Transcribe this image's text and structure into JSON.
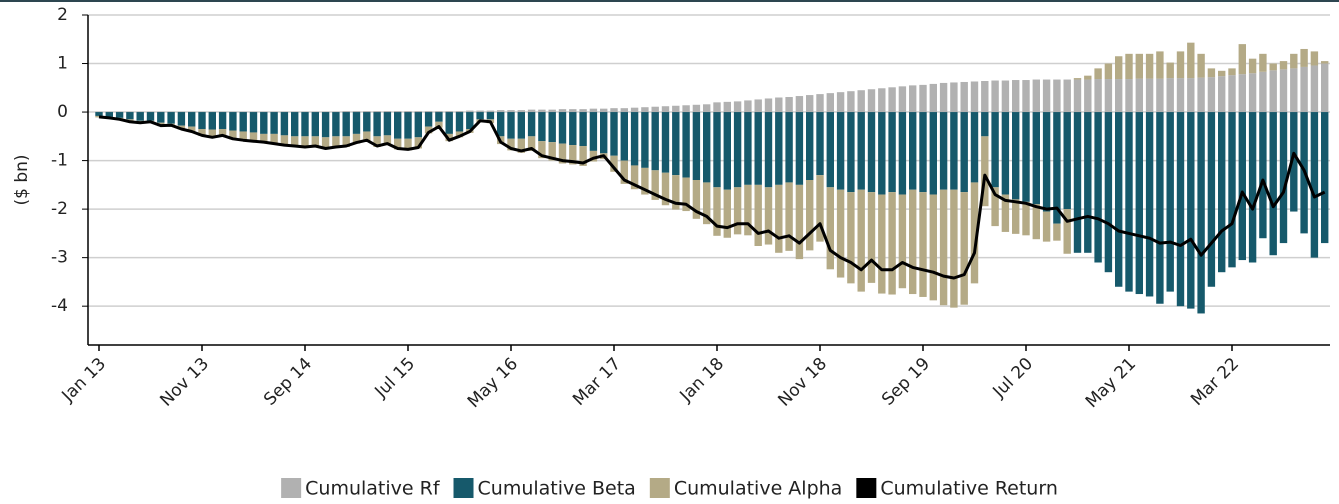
{
  "chart_data": {
    "type": "bar",
    "stacked": true,
    "y_label": "($ bn)",
    "categories": [
      "Jan 13",
      null,
      null,
      null,
      null,
      null,
      null,
      null,
      null,
      null,
      "Nov 13",
      null,
      null,
      null,
      null,
      null,
      null,
      null,
      null,
      null,
      "Sep 14",
      null,
      null,
      null,
      null,
      null,
      null,
      null,
      null,
      null,
      "Jul 15",
      null,
      null,
      null,
      null,
      null,
      null,
      null,
      null,
      null,
      "May 16",
      null,
      null,
      null,
      null,
      null,
      null,
      null,
      null,
      null,
      "Mar 17",
      null,
      null,
      null,
      null,
      null,
      null,
      null,
      null,
      null,
      "Jan 18",
      null,
      null,
      null,
      null,
      null,
      null,
      null,
      null,
      null,
      "Nov 18",
      null,
      null,
      null,
      null,
      null,
      null,
      null,
      null,
      null,
      "Sep 19",
      null,
      null,
      null,
      null,
      null,
      null,
      null,
      null,
      null,
      "Jul 20",
      null,
      null,
      null,
      null,
      null,
      null,
      null,
      null,
      null,
      "May 21",
      null,
      null,
      null,
      null,
      null,
      null,
      null,
      null,
      null,
      "Mar 22",
      null,
      null,
      null,
      null,
      null,
      null,
      null,
      null,
      null
    ],
    "series": [
      {
        "name": "Cumulative Rf",
        "color": "#b1b1b1",
        "values": [
          0.01,
          0.01,
          0.01,
          0.01,
          0.01,
          0.01,
          0.01,
          0.01,
          0.01,
          0.01,
          0.01,
          0.01,
          0.01,
          0.01,
          0.01,
          0.01,
          0.01,
          0.01,
          0.01,
          0.01,
          0.01,
          0.01,
          0.01,
          0.01,
          0.02,
          0.02,
          0.02,
          0.02,
          0.02,
          0.02,
          0.02,
          0.02,
          0.02,
          0.02,
          0.02,
          0.02,
          0.03,
          0.03,
          0.03,
          0.04,
          0.04,
          0.04,
          0.05,
          0.05,
          0.05,
          0.06,
          0.06,
          0.06,
          0.07,
          0.07,
          0.08,
          0.08,
          0.09,
          0.1,
          0.11,
          0.12,
          0.13,
          0.14,
          0.15,
          0.16,
          0.2,
          0.21,
          0.22,
          0.24,
          0.26,
          0.28,
          0.3,
          0.31,
          0.33,
          0.35,
          0.37,
          0.39,
          0.41,
          0.43,
          0.45,
          0.47,
          0.49,
          0.51,
          0.53,
          0.55,
          0.56,
          0.58,
          0.6,
          0.61,
          0.62,
          0.63,
          0.64,
          0.65,
          0.65,
          0.66,
          0.66,
          0.67,
          0.67,
          0.67,
          0.67,
          0.67,
          0.67,
          0.68,
          0.68,
          0.68,
          0.68,
          0.69,
          0.69,
          0.69,
          0.7,
          0.7,
          0.7,
          0.71,
          0.72,
          0.74,
          0.76,
          0.78,
          0.8,
          0.83,
          0.86,
          0.88,
          0.9,
          0.93,
          0.96,
          1.0
        ]
      },
      {
        "name": "Cumulative Beta",
        "color": "#16596b",
        "values": [
          -0.08,
          -0.1,
          -0.12,
          -0.15,
          -0.18,
          -0.18,
          -0.22,
          -0.24,
          -0.28,
          -0.3,
          -0.35,
          -0.36,
          -0.35,
          -0.38,
          -0.4,
          -0.42,
          -0.45,
          -0.45,
          -0.48,
          -0.5,
          -0.5,
          -0.5,
          -0.52,
          -0.5,
          -0.5,
          -0.45,
          -0.4,
          -0.5,
          -0.48,
          -0.55,
          -0.55,
          -0.52,
          -0.3,
          -0.2,
          -0.45,
          -0.4,
          -0.35,
          -0.15,
          -0.15,
          -0.5,
          -0.55,
          -0.55,
          -0.5,
          -0.6,
          -0.62,
          -0.65,
          -0.68,
          -0.7,
          -0.8,
          -0.85,
          -0.9,
          -1.0,
          -1.1,
          -1.15,
          -1.2,
          -1.25,
          -1.3,
          -1.35,
          -1.4,
          -1.45,
          -1.55,
          -1.6,
          -1.55,
          -1.5,
          -1.5,
          -1.55,
          -1.5,
          -1.45,
          -1.5,
          -1.4,
          -1.3,
          -1.55,
          -1.6,
          -1.65,
          -1.6,
          -1.65,
          -1.7,
          -1.65,
          -1.7,
          -1.6,
          -1.65,
          -1.7,
          -1.6,
          -1.6,
          -1.65,
          -1.45,
          -0.5,
          -1.55,
          -1.7,
          -1.8,
          -1.85,
          -1.9,
          -2.05,
          -2.3,
          -2.0,
          -2.9,
          -2.9,
          -3.1,
          -3.3,
          -3.6,
          -3.7,
          -3.75,
          -3.8,
          -3.95,
          -3.7,
          -4.0,
          -4.05,
          -4.15,
          -3.6,
          -3.3,
          -3.2,
          -3.05,
          -3.1,
          -2.6,
          -2.95,
          -2.7,
          -2.05,
          -2.5,
          -3.0,
          -2.7
        ]
      },
      {
        "name": "Cumulative Alpha",
        "color": "#b4aa86",
        "values": [
          -0.03,
          -0.03,
          -0.04,
          -0.06,
          -0.05,
          -0.03,
          -0.07,
          -0.04,
          -0.08,
          -0.11,
          -0.14,
          -0.17,
          -0.14,
          -0.18,
          -0.19,
          -0.19,
          -0.18,
          -0.21,
          -0.21,
          -0.21,
          -0.23,
          -0.21,
          -0.24,
          -0.23,
          -0.22,
          -0.2,
          -0.2,
          -0.22,
          -0.19,
          -0.22,
          -0.24,
          -0.23,
          -0.14,
          -0.12,
          -0.15,
          -0.12,
          -0.08,
          -0.06,
          -0.08,
          -0.16,
          -0.24,
          -0.29,
          -0.3,
          -0.35,
          -0.38,
          -0.41,
          -0.4,
          -0.41,
          -0.22,
          -0.12,
          -0.33,
          -0.48,
          -0.49,
          -0.55,
          -0.61,
          -0.67,
          -0.71,
          -0.69,
          -0.8,
          -0.86,
          -1.0,
          -0.99,
          -0.97,
          -1.04,
          -1.26,
          -1.18,
          -1.4,
          -1.41,
          -1.53,
          -1.45,
          -1.37,
          -1.69,
          -1.81,
          -1.88,
          -2.1,
          -1.87,
          -2.04,
          -2.11,
          -1.93,
          -2.15,
          -2.16,
          -2.18,
          -2.38,
          -2.43,
          -2.32,
          -2.08,
          -1.44,
          -0.8,
          -0.77,
          -0.71,
          -0.69,
          -0.72,
          -0.62,
          -0.35,
          -0.92,
          0.03,
          0.08,
          0.22,
          0.32,
          0.47,
          0.52,
          0.51,
          0.51,
          0.56,
          0.32,
          0.55,
          0.73,
          0.49,
          0.18,
          0.11,
          0.14,
          0.62,
          0.3,
          0.37,
          0.14,
          0.17,
          0.3,
          0.37,
          0.29,
          0.05
        ]
      },
      {
        "name": "Cumulative Return",
        "color": "#000000",
        "type": "line",
        "values": [
          -0.1,
          -0.12,
          -0.15,
          -0.2,
          -0.22,
          -0.2,
          -0.28,
          -0.27,
          -0.35,
          -0.4,
          -0.48,
          -0.52,
          -0.48,
          -0.55,
          -0.58,
          -0.6,
          -0.62,
          -0.65,
          -0.68,
          -0.7,
          -0.72,
          -0.7,
          -0.75,
          -0.72,
          -0.7,
          -0.63,
          -0.58,
          -0.7,
          -0.65,
          -0.75,
          -0.77,
          -0.73,
          -0.42,
          -0.3,
          -0.58,
          -0.5,
          -0.4,
          -0.18,
          -0.2,
          -0.62,
          -0.75,
          -0.8,
          -0.75,
          -0.9,
          -0.95,
          -1.0,
          -1.02,
          -1.05,
          -0.95,
          -0.9,
          -1.15,
          -1.4,
          -1.5,
          -1.6,
          -1.7,
          -1.8,
          -1.88,
          -1.9,
          -2.05,
          -2.15,
          -2.35,
          -2.38,
          -2.3,
          -2.3,
          -2.5,
          -2.45,
          -2.6,
          -2.55,
          -2.7,
          -2.5,
          -2.3,
          -2.85,
          -3.0,
          -3.1,
          -3.25,
          -3.05,
          -3.25,
          -3.25,
          -3.1,
          -3.2,
          -3.25,
          -3.3,
          -3.38,
          -3.42,
          -3.35,
          -2.9,
          -1.3,
          -1.7,
          -1.82,
          -1.85,
          -1.88,
          -1.95,
          -2.0,
          -1.98,
          -2.25,
          -2.2,
          -2.15,
          -2.2,
          -2.3,
          -2.45,
          -2.5,
          -2.55,
          -2.6,
          -2.7,
          -2.68,
          -2.75,
          -2.62,
          -2.95,
          -2.7,
          -2.45,
          -2.3,
          -1.65,
          -2.0,
          -1.4,
          -1.95,
          -1.65,
          -0.85,
          -1.2,
          -1.75,
          -1.65
        ]
      }
    ],
    "ylim": [
      -4.8,
      2
    ],
    "yticks": [
      -4,
      -3,
      -2,
      -1,
      0,
      1,
      2
    ],
    "grid": true,
    "legend": "bottom"
  }
}
